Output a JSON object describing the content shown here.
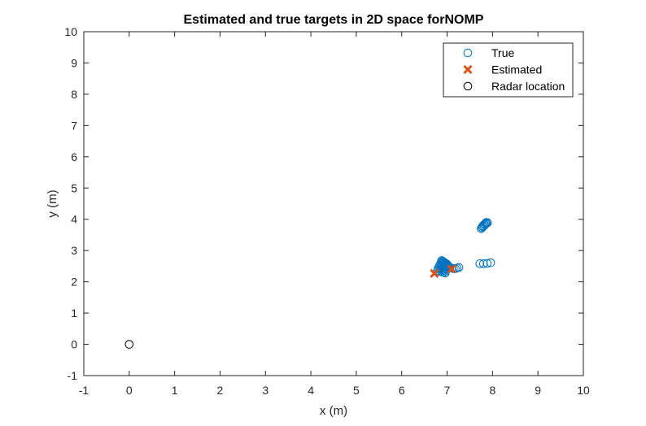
{
  "chart_data": {
    "type": "scatter",
    "title": "Estimated and true targets in 2D space forNOMP",
    "xlabel": "x (m)",
    "ylabel": "y (m)",
    "xlim": [
      -1,
      10
    ],
    "ylim": [
      -1,
      10
    ],
    "xticks": [
      -1,
      0,
      1,
      2,
      3,
      4,
      5,
      6,
      7,
      8,
      9,
      10
    ],
    "yticks": [
      -1,
      0,
      1,
      2,
      3,
      4,
      5,
      6,
      7,
      8,
      9,
      10
    ],
    "grid": false,
    "legend_position": "top-right",
    "colors": {
      "true": "#0072BD",
      "estimated": "#D95319",
      "radar": "#000000",
      "axes": "#262626"
    },
    "series": [
      {
        "name": "True",
        "marker": "circle",
        "x": [
          6.88,
          6.9,
          6.92,
          6.94,
          6.96,
          6.98,
          7.0,
          6.86,
          6.9,
          6.94,
          6.98,
          7.02,
          6.84,
          6.88,
          6.93,
          6.97,
          7.01,
          6.82,
          6.86,
          6.91,
          6.95,
          6.99,
          6.8,
          6.85,
          6.89,
          6.93,
          6.97,
          6.79,
          6.83,
          6.88,
          6.92,
          6.96,
          7.04,
          7.06,
          7.1,
          7.14,
          7.18,
          7.22,
          7.26,
          7.72,
          7.8,
          7.88,
          7.96,
          7.75,
          7.77,
          7.79,
          7.81,
          7.83,
          7.85,
          7.87,
          7.89,
          7.78,
          7.82,
          7.86
        ],
        "y": [
          2.68,
          2.66,
          2.64,
          2.62,
          2.6,
          2.58,
          2.56,
          2.6,
          2.58,
          2.56,
          2.54,
          2.52,
          2.54,
          2.52,
          2.5,
          2.48,
          2.46,
          2.48,
          2.46,
          2.44,
          2.42,
          2.4,
          2.42,
          2.4,
          2.38,
          2.36,
          2.34,
          2.36,
          2.34,
          2.32,
          2.3,
          2.28,
          2.48,
          2.46,
          2.44,
          2.42,
          2.42,
          2.44,
          2.46,
          2.58,
          2.58,
          2.59,
          2.61,
          3.7,
          3.73,
          3.76,
          3.79,
          3.82,
          3.85,
          3.87,
          3.89,
          3.78,
          3.84,
          3.9
        ]
      },
      {
        "name": "Estimated",
        "marker": "x",
        "x": [
          6.72,
          7.1
        ],
        "y": [
          2.27,
          2.41
        ]
      },
      {
        "name": "Radar location",
        "marker": "circle",
        "x": [
          0
        ],
        "y": [
          0
        ]
      }
    ]
  }
}
